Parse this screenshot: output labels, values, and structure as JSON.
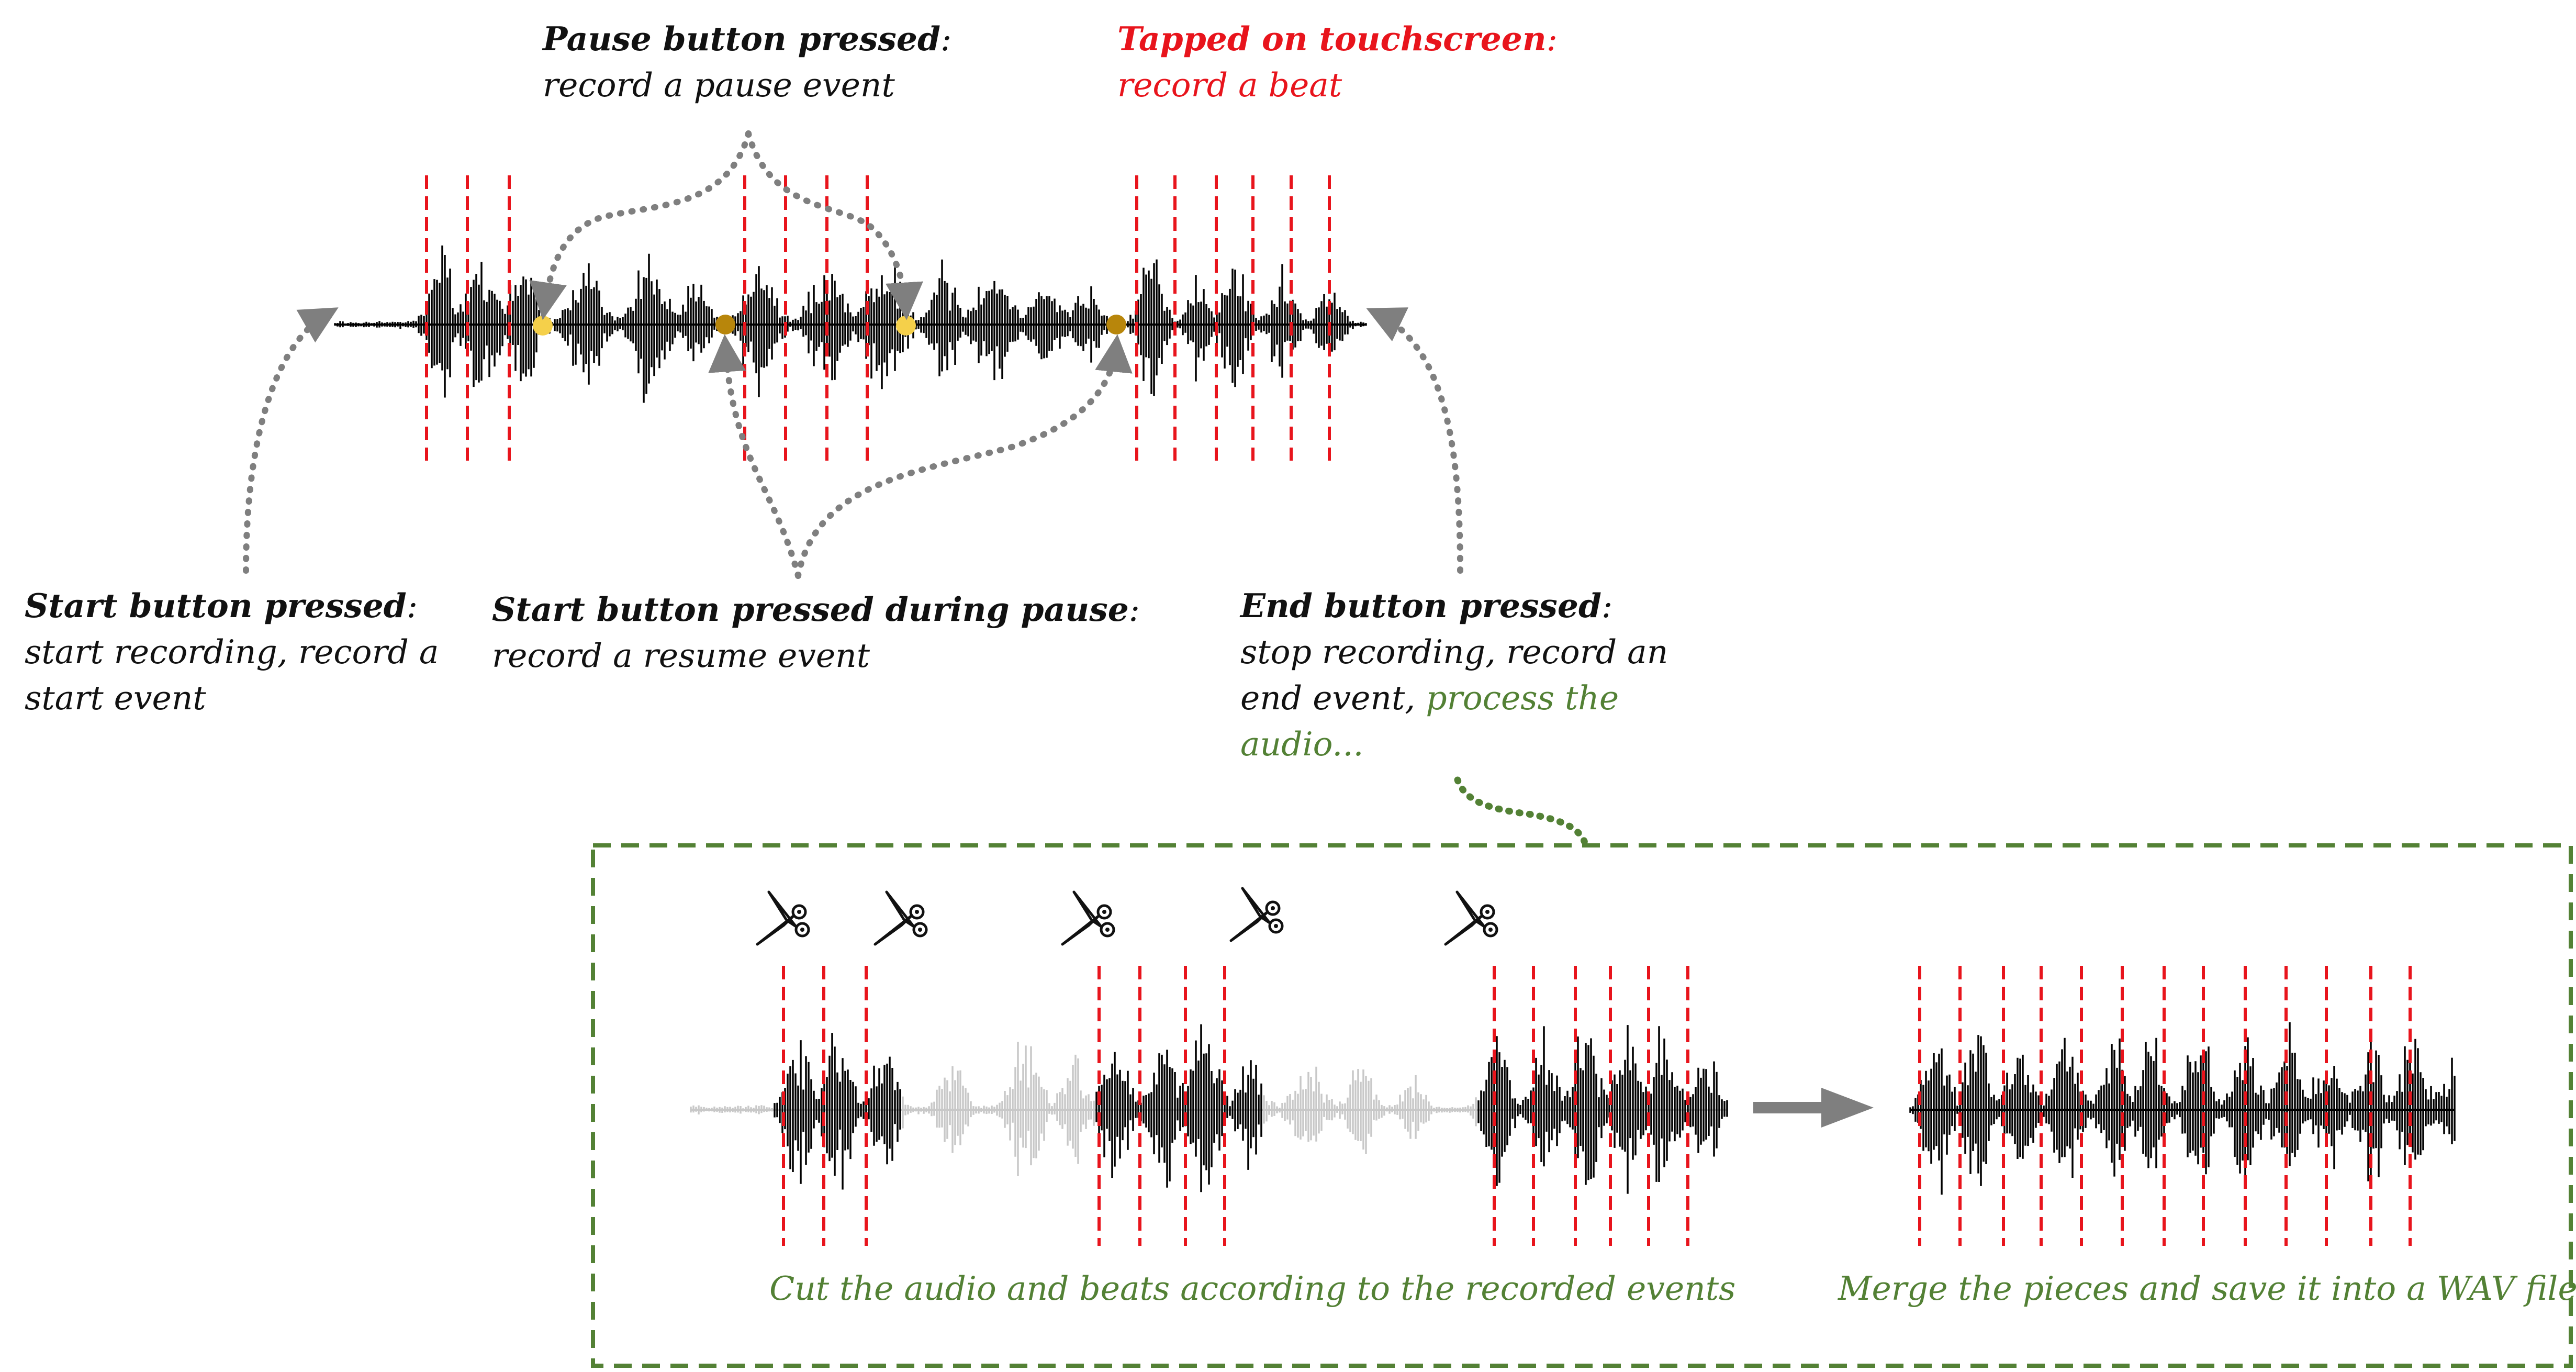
{
  "colors": {
    "beat": "#e8141c",
    "pause_dot": "#f5d04a",
    "resume_dot": "#b8860b",
    "annotation_arrow": "#7f7f7f",
    "process_frame": "#538135",
    "process_text": "#538135",
    "kept_wave": "#000000",
    "removed_wave": "#c8c8c8",
    "flow_arrow": "#7f7f7f"
  },
  "annotations": {
    "pause": {
      "heading": "Pause button pressed",
      "colon": ":",
      "text": "record a pause event"
    },
    "tap": {
      "heading": "Tapped on touchscreen",
      "colon": ":",
      "text": "record a beat"
    },
    "start": {
      "heading": "Start button pressed",
      "colon": ":",
      "line1": "start recording, record a",
      "line2": "start event"
    },
    "resume": {
      "heading": "Start button pressed during pause",
      "colon": ":",
      "text": "record a resume event"
    },
    "end": {
      "heading": "End button pressed",
      "colon": ":",
      "line1": "stop recording, record an",
      "line2_plain": "end event, ",
      "line2_green": "process the",
      "line3_green": "audio..."
    }
  },
  "process": {
    "cut_caption": "Cut the audio and beats according to the recorded events",
    "merge_caption": "Merge the pieces and save it into a WAV file",
    "cut_icons": [
      "scissors-icon",
      "scissors-icon",
      "scissors-icon",
      "scissors-icon",
      "scissors-icon"
    ],
    "flow_icon": "arrow-right-icon"
  }
}
